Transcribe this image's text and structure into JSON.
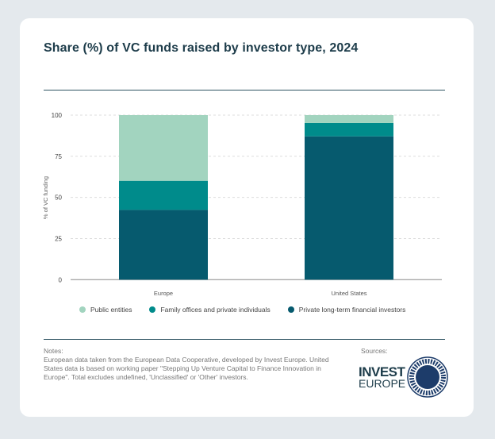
{
  "title": "Share (%) of VC funds raised by investor type, 2024",
  "chart_data": {
    "type": "bar",
    "stacked": true,
    "categories": [
      "Europe",
      "United States"
    ],
    "ylabel": "% of VC funding",
    "ylim": [
      0,
      100
    ],
    "yticks": [
      "0",
      "25",
      "50",
      "75",
      "100"
    ],
    "grid": true,
    "legend_position": "bottom",
    "series": [
      {
        "name": "Private long-term financial investors",
        "color": "#065a6e",
        "values": [
          42.4,
          87.1
        ]
      },
      {
        "name": "Family offices and private individuals",
        "color": "#008b8b",
        "values": [
          17.7,
          8.1
        ]
      },
      {
        "name": "Public entities",
        "color": "#a2d4bf",
        "values": [
          39.9,
          4.8
        ]
      }
    ]
  },
  "legend": [
    "Public entities",
    "Family offices and private individuals",
    "Private long-term financial investors"
  ],
  "notes": {
    "label": "Notes:",
    "text": "European data taken from the European Data Cooperative, developed by Invest Europe. United States data is based on working paper \"Stepping Up Venture Capital to Finance Innovation in Europe\". Total excludes undefined, 'Unclassified' or 'Other' investors."
  },
  "sources": {
    "label": "Sources:",
    "logos": [
      "INVEST EUROPE",
      "INTERNATIONAL MONETARY FUND"
    ]
  }
}
